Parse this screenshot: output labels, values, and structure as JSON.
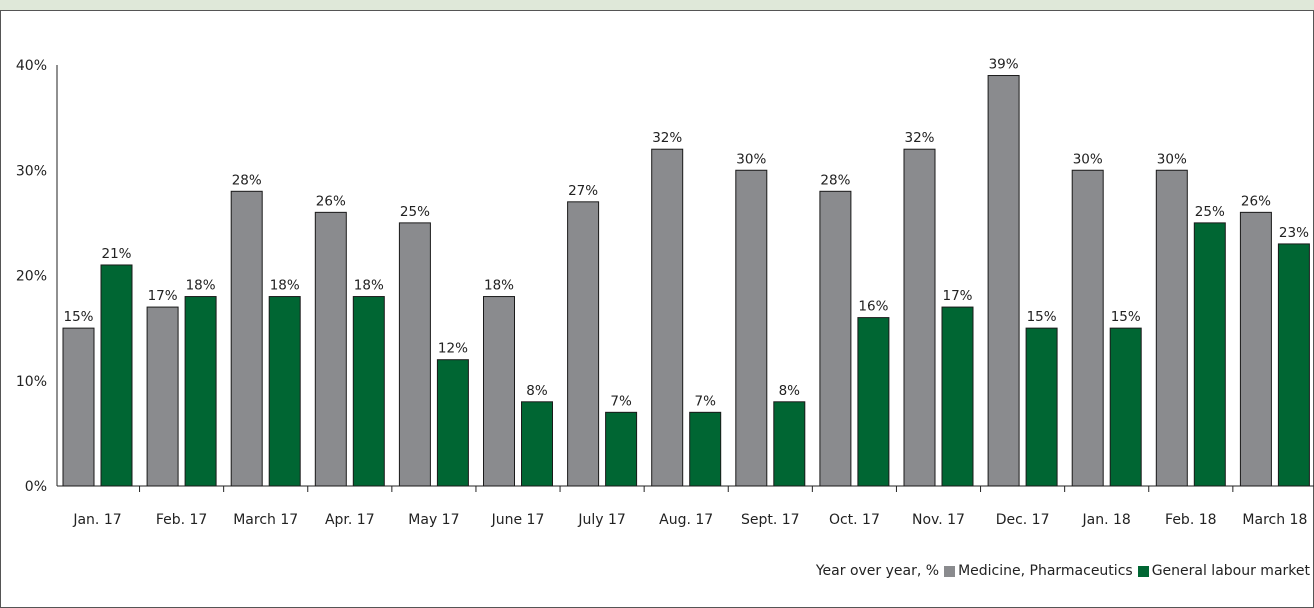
{
  "colors": {
    "header_band": "#dfe8d9",
    "medicine": "#8a8b8e",
    "general": "#006633",
    "axis": "#222222"
  },
  "chart_data": {
    "type": "bar",
    "categories": [
      "Jan. 17",
      "Feb. 17",
      "March 17",
      "Apr. 17",
      "May 17",
      "June 17",
      "July 17",
      "Aug. 17",
      "Sept. 17",
      "Oct. 17",
      "Nov. 17",
      "Dec. 17",
      "Jan. 18",
      "Feb. 18",
      "March 18"
    ],
    "series": [
      {
        "name": "Medicine, Pharmaceutics",
        "color": "#8a8b8e",
        "values": [
          15,
          17,
          28,
          26,
          25,
          18,
          27,
          32,
          30,
          28,
          32,
          39,
          30,
          30,
          26
        ]
      },
      {
        "name": "General labour market",
        "color": "#006633",
        "values": [
          21,
          18,
          18,
          18,
          12,
          8,
          7,
          7,
          8,
          16,
          17,
          15,
          15,
          25,
          23
        ]
      }
    ],
    "ylim": [
      0,
      40
    ],
    "yticks": [
      "0%",
      "10%",
      "20%",
      "30%",
      "40%"
    ],
    "value_suffix": "%",
    "grid": false,
    "legend_position": "bottom-right",
    "legend_prefix": "Year over year, %"
  }
}
